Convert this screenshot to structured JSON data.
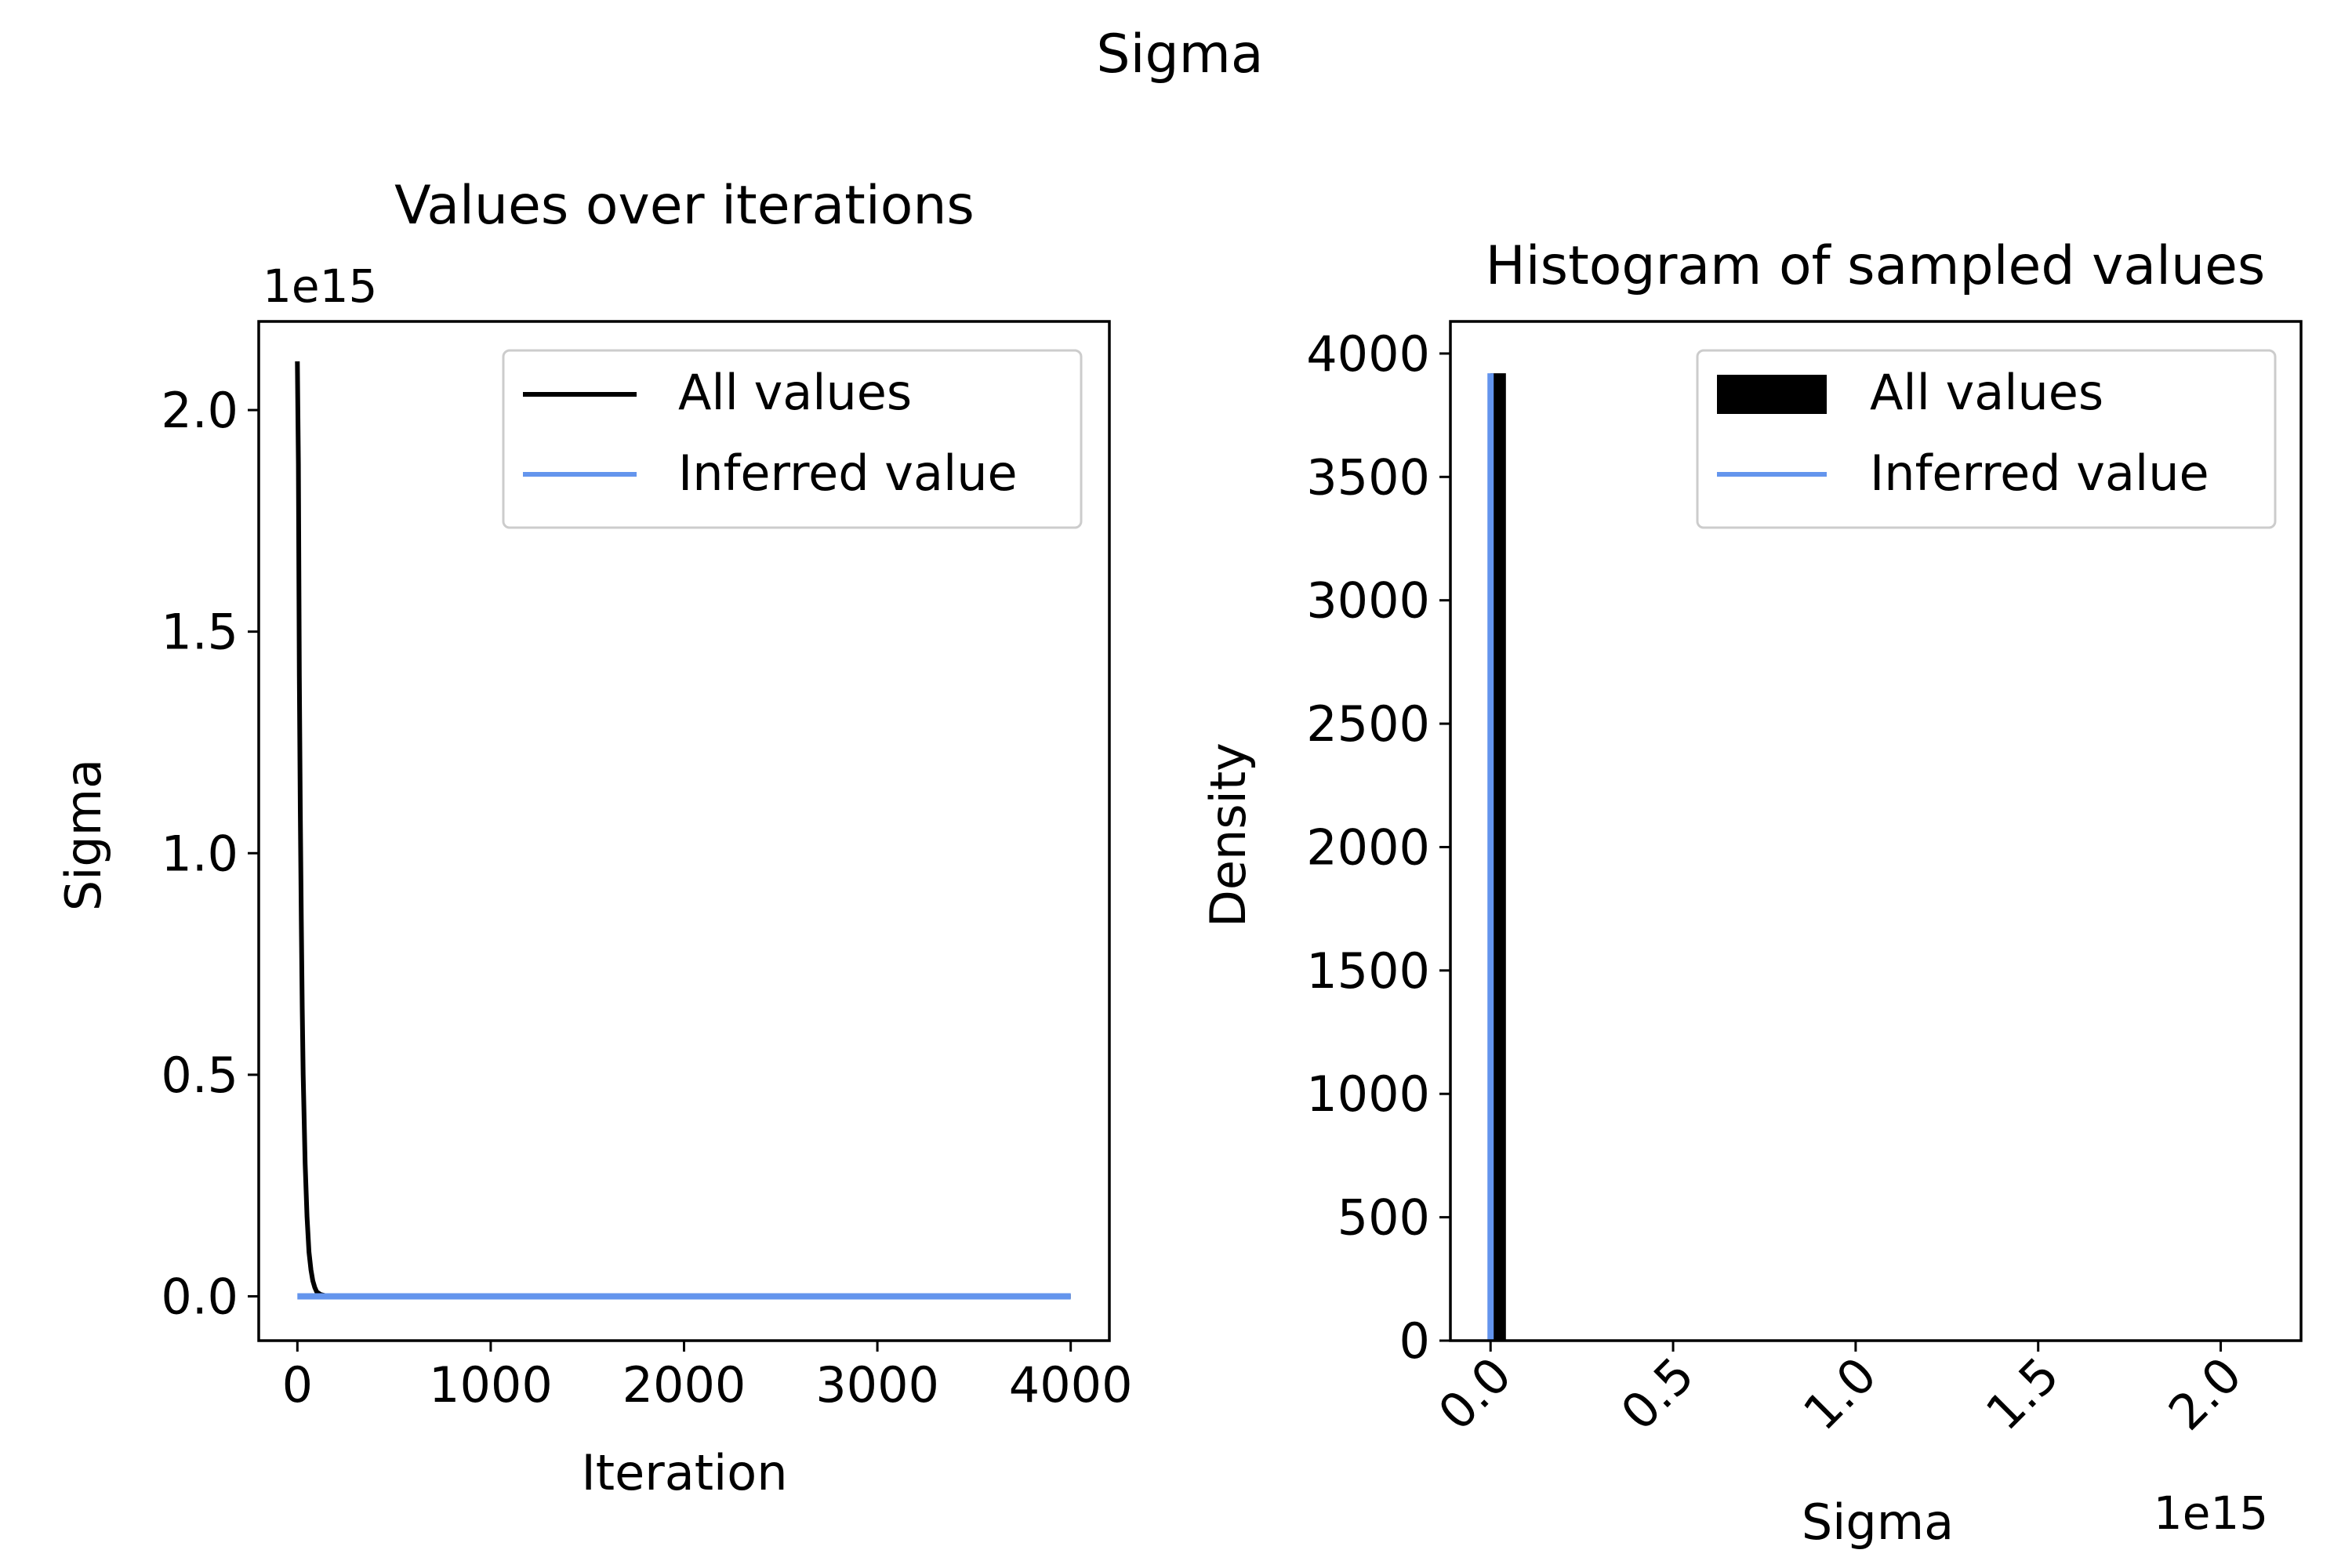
{
  "figure_title": "Sigma",
  "chart_data": [
    {
      "type": "line",
      "title": "Values over iterations",
      "xlabel": "Iteration",
      "ylabel": "Sigma",
      "y_offset_label": "1e15",
      "xlim": [
        -200,
        4200
      ],
      "ylim": [
        -0.1,
        2.2
      ],
      "xticks": [
        0,
        1000,
        2000,
        3000,
        4000
      ],
      "xtick_labels": [
        "0",
        "1000",
        "2000",
        "3000",
        "4000"
      ],
      "yticks": [
        0.0,
        0.5,
        1.0,
        1.5,
        2.0
      ],
      "ytick_labels": [
        "0.0",
        "0.5",
        "1.0",
        "1.5",
        "2.0"
      ],
      "y_scale_note": "values in units of 1e15",
      "legend": {
        "position": "top-right",
        "entries": [
          "All values",
          "Inferred value"
        ]
      },
      "series": [
        {
          "name": "All values",
          "color": "#000000",
          "x": [
            0,
            5,
            10,
            15,
            20,
            25,
            30,
            40,
            50,
            60,
            70,
            80,
            90,
            100,
            120,
            150,
            200,
            500,
            1000,
            2000,
            3000,
            4000
          ],
          "y": [
            2.11,
            1.88,
            1.4,
            1.1,
            0.85,
            0.65,
            0.5,
            0.3,
            0.18,
            0.1,
            0.06,
            0.035,
            0.02,
            0.01,
            0.004,
            0.001,
            0.0,
            0.0,
            0.0,
            0.0,
            0.0,
            0.0
          ]
        },
        {
          "name": "Inferred value",
          "color": "#6495ED",
          "x": [
            0,
            4000
          ],
          "y": [
            0.0,
            0.0
          ]
        }
      ]
    },
    {
      "type": "bar",
      "title": "Histogram of sampled values",
      "xlabel": "Sigma",
      "ylabel": "Density",
      "x_offset_label": "1e15",
      "xlim": [
        -0.11,
        2.22
      ],
      "ylim": [
        0,
        4130
      ],
      "xticks": [
        0.0,
        0.5,
        1.0,
        1.5,
        2.0
      ],
      "xtick_labels": [
        "0.0",
        "0.5",
        "1.0",
        "1.5",
        "2.0"
      ],
      "yticks": [
        0,
        500,
        1000,
        1500,
        2000,
        2500,
        3000,
        3500,
        4000
      ],
      "ytick_labels": [
        "0",
        "500",
        "1000",
        "1500",
        "2000",
        "2500",
        "3000",
        "3500",
        "4000"
      ],
      "legend": {
        "position": "top-right",
        "entries": [
          "All values",
          "Inferred value"
        ]
      },
      "series": [
        {
          "name": "All values",
          "color": "#000000",
          "bins": [
            {
              "x0": 0.0,
              "x1": 0.042,
              "value": 3920
            },
            {
              "x0": 0.042,
              "x1": 0.084,
              "value": 4
            },
            {
              "x0": 0.084,
              "x1": 2.11,
              "value": 1
            }
          ]
        },
        {
          "name": "Inferred value",
          "color": "#6495ED",
          "type": "vline",
          "x": 0.0,
          "y_top": 3920
        }
      ]
    }
  ]
}
